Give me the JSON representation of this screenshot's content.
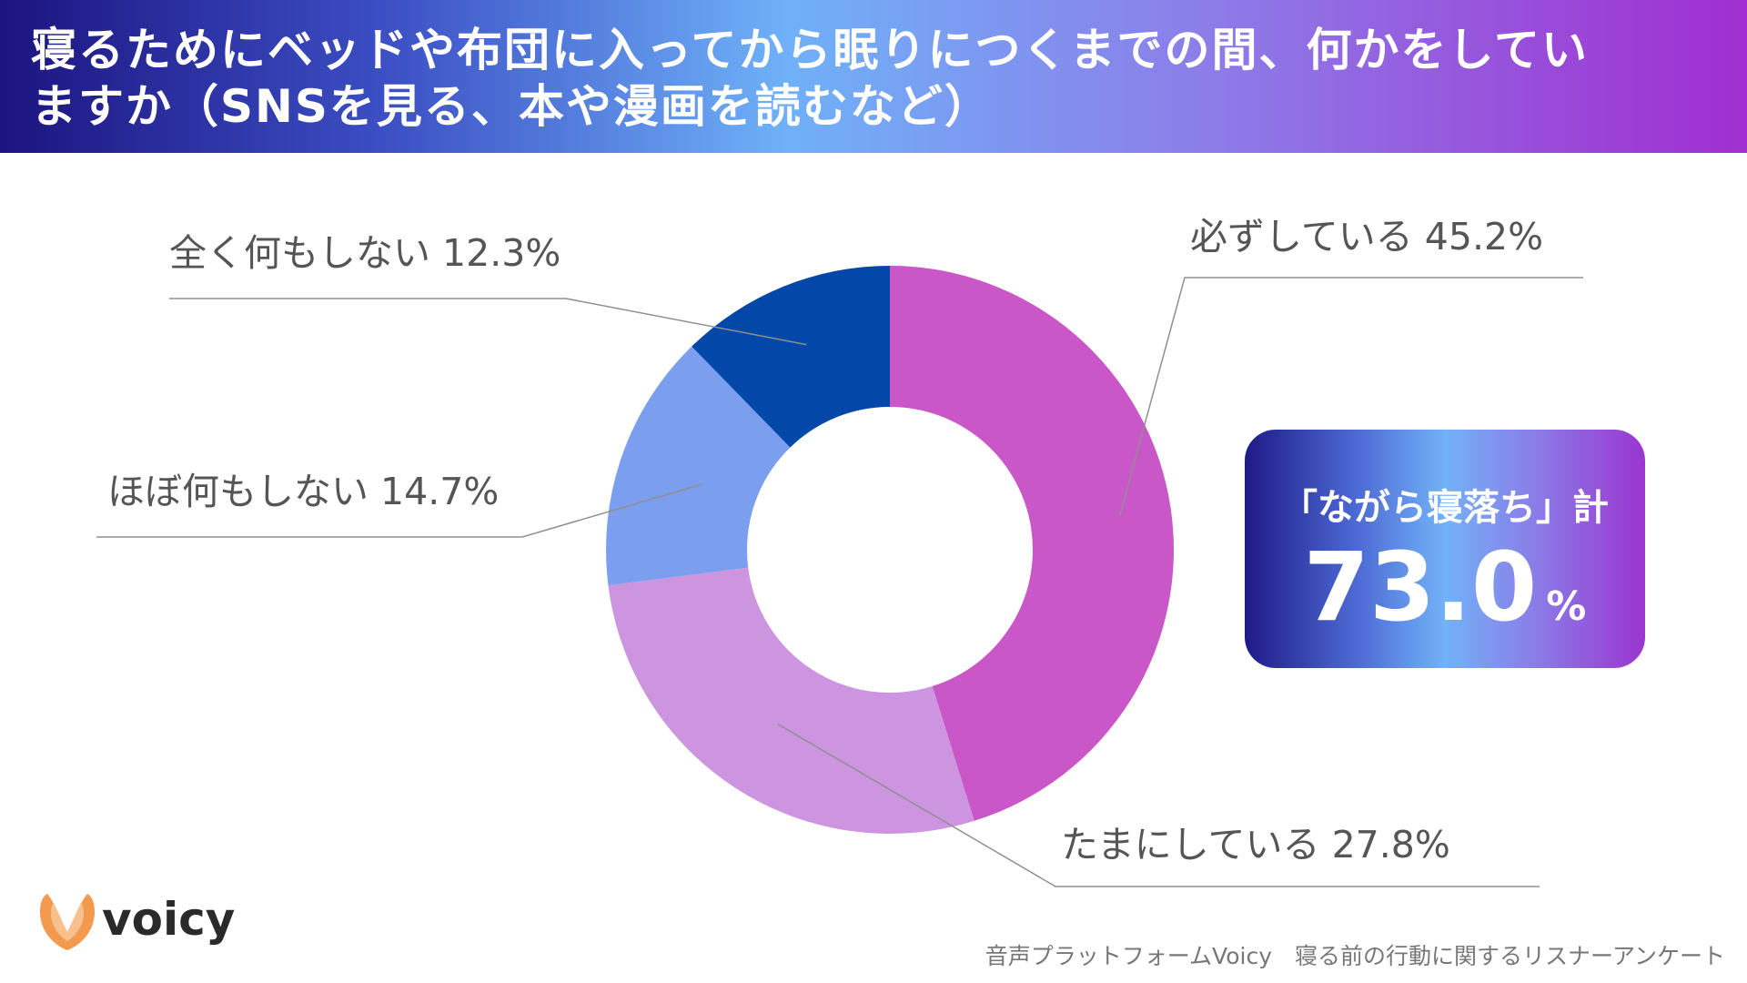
{
  "header": {
    "title": "寝るためにベッドや布団に入ってから眠りにつくまでの間、何かをしていますか（SNSを見る、本や漫画を読むなど）"
  },
  "chart_data": {
    "type": "pie",
    "title": "寝るためにベッドや布団に入ってから眠りにつくまでの間、何かをしていますか（SNSを見る、本や漫画を読むなど）",
    "unit": "%",
    "slices": [
      {
        "label": "必ずしている",
        "value": 45.2,
        "display": "必ずしている 45.2%",
        "color": "#c957c8"
      },
      {
        "label": "たまにしている",
        "value": 27.8,
        "display": "たまにしている 27.8%",
        "color": "#cd95e0"
      },
      {
        "label": "ほぼ何もしない",
        "value": 14.7,
        "display": "ほぼ何もしない 14.7%",
        "color": "#7b9eee"
      },
      {
        "label": "全く何もしない",
        "value": 12.3,
        "display": "全く何もしない 12.3%",
        "color": "#0348a9"
      }
    ]
  },
  "highlight": {
    "label": "「ながら寝落ち」計",
    "value": "73.0",
    "unit": "%"
  },
  "logo": {
    "text": "voicy",
    "colors": {
      "outer": "#f39a4f",
      "inner": "#f8c08c"
    }
  },
  "footer": {
    "source": "音声プラットフォームVoicy　寝る前の行動に関するリスナーアンケート"
  }
}
